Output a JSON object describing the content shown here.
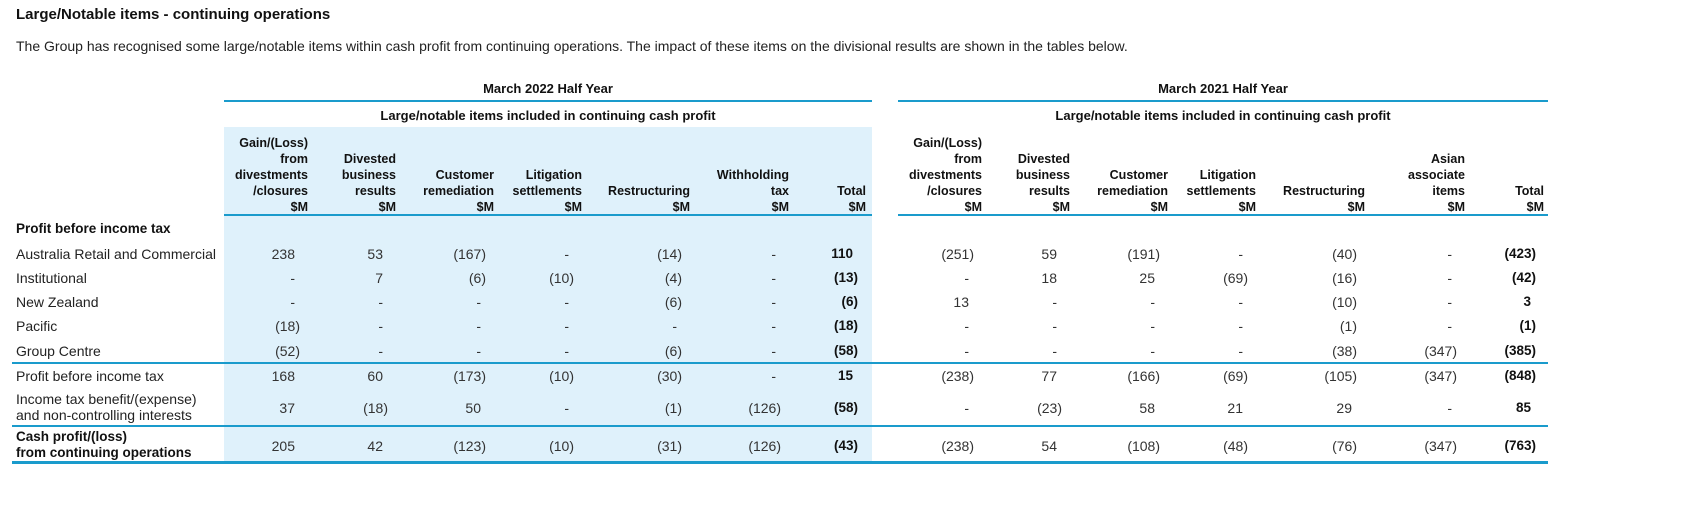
{
  "title": "Large/Notable items - continuing operations",
  "description": "The Group has recognised some large/notable items within cash profit from continuing operations. The impact of these items on the divisional results are shown in the tables below.",
  "periods": [
    {
      "label": "March 2022 Half Year",
      "subheader": "Large/notable items included in continuing cash profit",
      "columns": [
        [
          "Gain/(Loss)",
          "from",
          "divestments",
          "/closures",
          "$M"
        ],
        [
          "Divested",
          "business",
          "results",
          "$M"
        ],
        [
          "Customer",
          "remediation",
          "$M"
        ],
        [
          "Litigation",
          "settlements",
          "$M"
        ],
        [
          "Restructuring",
          "$M"
        ],
        [
          "Withholding",
          "tax",
          "$M"
        ],
        [
          "Total",
          "$M"
        ]
      ]
    },
    {
      "label": "March 2021 Half Year",
      "subheader": "Large/notable items included in continuing cash profit",
      "columns": [
        [
          "Gain/(Loss)",
          "from",
          "divestments",
          "/closures",
          "$M"
        ],
        [
          "Divested",
          "business",
          "results",
          "$M"
        ],
        [
          "Customer",
          "remediation",
          "$M"
        ],
        [
          "Litigation",
          "settlements",
          "$M"
        ],
        [
          "Restructuring",
          "$M"
        ],
        [
          "Asian",
          "associate",
          "items",
          "$M"
        ],
        [
          "Total",
          "$M"
        ]
      ]
    }
  ],
  "section_label": "Profit before income tax",
  "rows": [
    {
      "label": [
        "Australia Retail and Commercial"
      ],
      "bold": false,
      "p2022": [
        "238",
        "53",
        "(167)",
        "-",
        "(14)",
        "-",
        "110"
      ],
      "p2021": [
        "(251)",
        "59",
        "(191)",
        "-",
        "(40)",
        "-",
        "(423)"
      ]
    },
    {
      "label": [
        "Institutional"
      ],
      "bold": false,
      "p2022": [
        "-",
        "7",
        "(6)",
        "(10)",
        "(4)",
        "-",
        "(13)"
      ],
      "p2021": [
        "-",
        "18",
        "25",
        "(69)",
        "(16)",
        "-",
        "(42)"
      ]
    },
    {
      "label": [
        "New Zealand"
      ],
      "bold": false,
      "p2022": [
        "-",
        "-",
        "-",
        "-",
        "(6)",
        "-",
        "(6)"
      ],
      "p2021": [
        "13",
        "-",
        "-",
        "-",
        "(10)",
        "-",
        "3"
      ]
    },
    {
      "label": [
        "Pacific"
      ],
      "bold": false,
      "p2022": [
        "(18)",
        "-",
        "-",
        "-",
        "-",
        "-",
        "(18)"
      ],
      "p2021": [
        "-",
        "-",
        "-",
        "-",
        "(1)",
        "-",
        "(1)"
      ]
    },
    {
      "label": [
        "Group Centre"
      ],
      "bold": false,
      "p2022": [
        "(52)",
        "-",
        "-",
        "-",
        "(6)",
        "-",
        "(58)"
      ],
      "p2021": [
        "-",
        "-",
        "-",
        "-",
        "(38)",
        "(347)",
        "(385)"
      ]
    },
    {
      "label": [
        "Profit before income tax"
      ],
      "bold": false,
      "p2022": [
        "168",
        "60",
        "(173)",
        "(10)",
        "(30)",
        "-",
        "15"
      ],
      "p2021": [
        "(238)",
        "77",
        "(166)",
        "(69)",
        "(105)",
        "(347)",
        "(848)"
      ]
    },
    {
      "label": [
        "Income tax benefit/(expense)",
        "and non-controlling interests"
      ],
      "bold": false,
      "p2022": [
        "37",
        "(18)",
        "50",
        "-",
        "(1)",
        "(126)",
        "(58)"
      ],
      "p2021": [
        "-",
        "(23)",
        "58",
        "21",
        "29",
        "-",
        "85"
      ]
    },
    {
      "label": [
        "Cash profit/(loss)",
        "from continuing operations"
      ],
      "bold": true,
      "p2022": [
        "205",
        "42",
        "(123)",
        "(10)",
        "(31)",
        "(126)",
        "(43)"
      ],
      "p2021": [
        "(238)",
        "54",
        "(108)",
        "(48)",
        "(76)",
        "(347)",
        "(763)"
      ]
    }
  ],
  "colors": {
    "accent_line": "#1a9bcc",
    "shade": "#dff1fb"
  }
}
